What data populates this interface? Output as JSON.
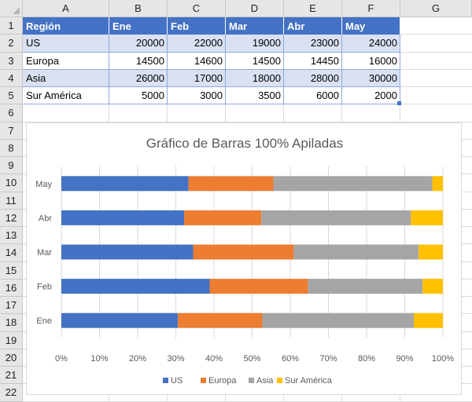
{
  "columns": [
    "A",
    "B",
    "C",
    "D",
    "E",
    "F",
    "G"
  ],
  "rows": [
    "1",
    "2",
    "3",
    "4",
    "5",
    "6",
    "7",
    "8",
    "9",
    "10",
    "11",
    "12",
    "13",
    "14",
    "15",
    "16",
    "17",
    "18",
    "19",
    "20",
    "21",
    "22"
  ],
  "table": {
    "headers": [
      "Región",
      "Ene",
      "Feb",
      "Mar",
      "Abr",
      "May"
    ],
    "rows": [
      [
        "US",
        "20000",
        "22000",
        "19000",
        "23000",
        "24000"
      ],
      [
        "Europa",
        "14500",
        "14600",
        "14500",
        "14450",
        "16000"
      ],
      [
        "Asia",
        "26000",
        "17000",
        "18000",
        "28000",
        "30000"
      ],
      [
        "Sur América",
        "5000",
        "3000",
        "3500",
        "6000",
        "2000"
      ]
    ]
  },
  "colors": {
    "US": "#4472c4",
    "Europa": "#ed7d31",
    "Asia": "#a5a5a5",
    "Sur América": "#ffc000",
    "header_fill": "#4472c4",
    "band_fill": "#d9e1f2"
  },
  "chart_data": {
    "type": "bar",
    "orientation": "horizontal",
    "stacking": "percent",
    "title": "Gráfico de Barras 100% Apiladas",
    "categories": [
      "Ene",
      "Feb",
      "Mar",
      "Abr",
      "May"
    ],
    "series": [
      {
        "name": "US",
        "values": [
          20000,
          22000,
          19000,
          23000,
          24000
        ]
      },
      {
        "name": "Europa",
        "values": [
          14500,
          14600,
          14500,
          14450,
          16000
        ]
      },
      {
        "name": "Asia",
        "values": [
          26000,
          17000,
          18000,
          28000,
          30000
        ]
      },
      {
        "name": "Sur América",
        "values": [
          5000,
          3000,
          3500,
          6000,
          2000
        ]
      }
    ],
    "xlim": [
      0,
      1
    ],
    "x_ticks": [
      "0%",
      "10%",
      "20%",
      "30%",
      "40%",
      "50%",
      "60%",
      "70%",
      "80%",
      "90%",
      "100%"
    ],
    "grid": true,
    "legend": "bottom"
  }
}
